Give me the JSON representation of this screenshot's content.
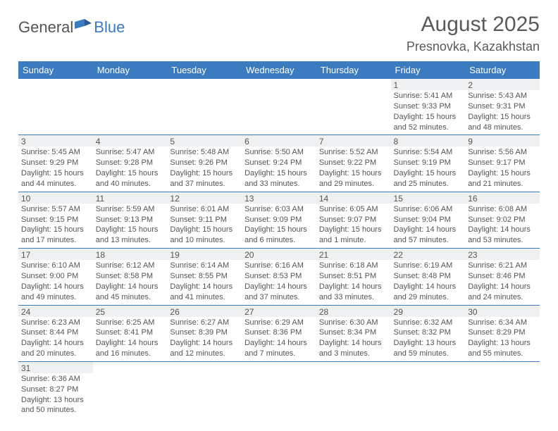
{
  "brand": {
    "part1": "General",
    "part2": "Blue"
  },
  "title": "August 2025",
  "location": "Presnovka, Kazakhstan",
  "colors": {
    "header_bg": "#3b7bbf",
    "header_text": "#ffffff",
    "daynum_bg": "#eef0f1",
    "rule": "#3b7bbf",
    "text": "#555555"
  },
  "weekdays": [
    "Sunday",
    "Monday",
    "Tuesday",
    "Wednesday",
    "Thursday",
    "Friday",
    "Saturday"
  ],
  "weeks": [
    [
      null,
      null,
      null,
      null,
      null,
      {
        "n": "1",
        "sr": "Sunrise: 5:41 AM",
        "ss": "Sunset: 9:33 PM",
        "d1": "Daylight: 15 hours",
        "d2": "and 52 minutes."
      },
      {
        "n": "2",
        "sr": "Sunrise: 5:43 AM",
        "ss": "Sunset: 9:31 PM",
        "d1": "Daylight: 15 hours",
        "d2": "and 48 minutes."
      }
    ],
    [
      {
        "n": "3",
        "sr": "Sunrise: 5:45 AM",
        "ss": "Sunset: 9:29 PM",
        "d1": "Daylight: 15 hours",
        "d2": "and 44 minutes."
      },
      {
        "n": "4",
        "sr": "Sunrise: 5:47 AM",
        "ss": "Sunset: 9:28 PM",
        "d1": "Daylight: 15 hours",
        "d2": "and 40 minutes."
      },
      {
        "n": "5",
        "sr": "Sunrise: 5:48 AM",
        "ss": "Sunset: 9:26 PM",
        "d1": "Daylight: 15 hours",
        "d2": "and 37 minutes."
      },
      {
        "n": "6",
        "sr": "Sunrise: 5:50 AM",
        "ss": "Sunset: 9:24 PM",
        "d1": "Daylight: 15 hours",
        "d2": "and 33 minutes."
      },
      {
        "n": "7",
        "sr": "Sunrise: 5:52 AM",
        "ss": "Sunset: 9:22 PM",
        "d1": "Daylight: 15 hours",
        "d2": "and 29 minutes."
      },
      {
        "n": "8",
        "sr": "Sunrise: 5:54 AM",
        "ss": "Sunset: 9:19 PM",
        "d1": "Daylight: 15 hours",
        "d2": "and 25 minutes."
      },
      {
        "n": "9",
        "sr": "Sunrise: 5:56 AM",
        "ss": "Sunset: 9:17 PM",
        "d1": "Daylight: 15 hours",
        "d2": "and 21 minutes."
      }
    ],
    [
      {
        "n": "10",
        "sr": "Sunrise: 5:57 AM",
        "ss": "Sunset: 9:15 PM",
        "d1": "Daylight: 15 hours",
        "d2": "and 17 minutes."
      },
      {
        "n": "11",
        "sr": "Sunrise: 5:59 AM",
        "ss": "Sunset: 9:13 PM",
        "d1": "Daylight: 15 hours",
        "d2": "and 13 minutes."
      },
      {
        "n": "12",
        "sr": "Sunrise: 6:01 AM",
        "ss": "Sunset: 9:11 PM",
        "d1": "Daylight: 15 hours",
        "d2": "and 10 minutes."
      },
      {
        "n": "13",
        "sr": "Sunrise: 6:03 AM",
        "ss": "Sunset: 9:09 PM",
        "d1": "Daylight: 15 hours",
        "d2": "and 6 minutes."
      },
      {
        "n": "14",
        "sr": "Sunrise: 6:05 AM",
        "ss": "Sunset: 9:07 PM",
        "d1": "Daylight: 15 hours",
        "d2": "and 1 minute."
      },
      {
        "n": "15",
        "sr": "Sunrise: 6:06 AM",
        "ss": "Sunset: 9:04 PM",
        "d1": "Daylight: 14 hours",
        "d2": "and 57 minutes."
      },
      {
        "n": "16",
        "sr": "Sunrise: 6:08 AM",
        "ss": "Sunset: 9:02 PM",
        "d1": "Daylight: 14 hours",
        "d2": "and 53 minutes."
      }
    ],
    [
      {
        "n": "17",
        "sr": "Sunrise: 6:10 AM",
        "ss": "Sunset: 9:00 PM",
        "d1": "Daylight: 14 hours",
        "d2": "and 49 minutes."
      },
      {
        "n": "18",
        "sr": "Sunrise: 6:12 AM",
        "ss": "Sunset: 8:58 PM",
        "d1": "Daylight: 14 hours",
        "d2": "and 45 minutes."
      },
      {
        "n": "19",
        "sr": "Sunrise: 6:14 AM",
        "ss": "Sunset: 8:55 PM",
        "d1": "Daylight: 14 hours",
        "d2": "and 41 minutes."
      },
      {
        "n": "20",
        "sr": "Sunrise: 6:16 AM",
        "ss": "Sunset: 8:53 PM",
        "d1": "Daylight: 14 hours",
        "d2": "and 37 minutes."
      },
      {
        "n": "21",
        "sr": "Sunrise: 6:18 AM",
        "ss": "Sunset: 8:51 PM",
        "d1": "Daylight: 14 hours",
        "d2": "and 33 minutes."
      },
      {
        "n": "22",
        "sr": "Sunrise: 6:19 AM",
        "ss": "Sunset: 8:48 PM",
        "d1": "Daylight: 14 hours",
        "d2": "and 29 minutes."
      },
      {
        "n": "23",
        "sr": "Sunrise: 6:21 AM",
        "ss": "Sunset: 8:46 PM",
        "d1": "Daylight: 14 hours",
        "d2": "and 24 minutes."
      }
    ],
    [
      {
        "n": "24",
        "sr": "Sunrise: 6:23 AM",
        "ss": "Sunset: 8:44 PM",
        "d1": "Daylight: 14 hours",
        "d2": "and 20 minutes."
      },
      {
        "n": "25",
        "sr": "Sunrise: 6:25 AM",
        "ss": "Sunset: 8:41 PM",
        "d1": "Daylight: 14 hours",
        "d2": "and 16 minutes."
      },
      {
        "n": "26",
        "sr": "Sunrise: 6:27 AM",
        "ss": "Sunset: 8:39 PM",
        "d1": "Daylight: 14 hours",
        "d2": "and 12 minutes."
      },
      {
        "n": "27",
        "sr": "Sunrise: 6:29 AM",
        "ss": "Sunset: 8:36 PM",
        "d1": "Daylight: 14 hours",
        "d2": "and 7 minutes."
      },
      {
        "n": "28",
        "sr": "Sunrise: 6:30 AM",
        "ss": "Sunset: 8:34 PM",
        "d1": "Daylight: 14 hours",
        "d2": "and 3 minutes."
      },
      {
        "n": "29",
        "sr": "Sunrise: 6:32 AM",
        "ss": "Sunset: 8:32 PM",
        "d1": "Daylight: 13 hours",
        "d2": "and 59 minutes."
      },
      {
        "n": "30",
        "sr": "Sunrise: 6:34 AM",
        "ss": "Sunset: 8:29 PM",
        "d1": "Daylight: 13 hours",
        "d2": "and 55 minutes."
      }
    ],
    [
      {
        "n": "31",
        "sr": "Sunrise: 6:36 AM",
        "ss": "Sunset: 8:27 PM",
        "d1": "Daylight: 13 hours",
        "d2": "and 50 minutes."
      },
      null,
      null,
      null,
      null,
      null,
      null
    ]
  ]
}
